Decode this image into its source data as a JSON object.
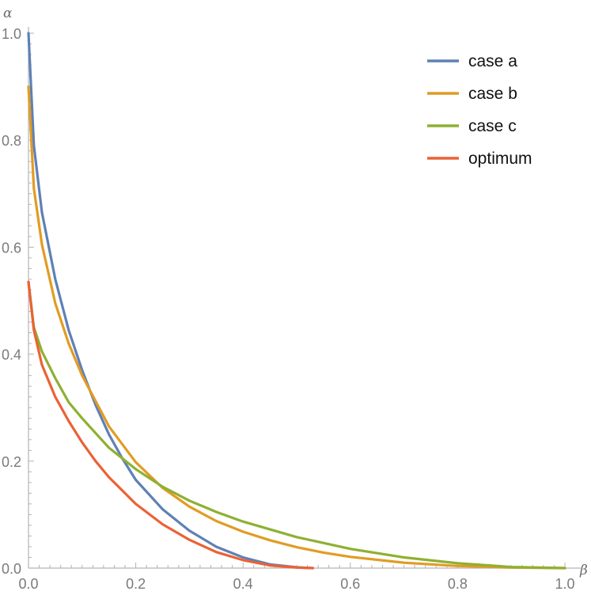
{
  "chart_data": {
    "type": "line",
    "xlabel": "β",
    "ylabel": "α",
    "xlim": [
      0,
      1
    ],
    "ylim": [
      0,
      1
    ],
    "x_ticks": [
      "0.0",
      "0.2",
      "0.4",
      "0.6",
      "0.8",
      "1.0"
    ],
    "y_ticks": [
      "0.0",
      "0.2",
      "0.4",
      "0.6",
      "0.8",
      "1.0"
    ],
    "x_tick_values": [
      0,
      0.2,
      0.4,
      0.6,
      0.8,
      1.0
    ],
    "y_tick_values": [
      0,
      0.2,
      0.4,
      0.6,
      0.8,
      1.0
    ],
    "grid": false,
    "legend_position": "top-right",
    "series": [
      {
        "name": "case a",
        "color": "#5e81b5",
        "x": [
          0,
          0.01,
          0.025,
          0.05,
          0.075,
          0.1,
          0.125,
          0.15,
          0.175,
          0.2,
          0.25,
          0.3,
          0.35,
          0.4,
          0.45,
          0.5,
          0.53
        ],
        "y": [
          1.0,
          0.79,
          0.665,
          0.54,
          0.445,
          0.37,
          0.305,
          0.25,
          0.205,
          0.165,
          0.11,
          0.07,
          0.04,
          0.02,
          0.007,
          0.0015,
          0.0
        ]
      },
      {
        "name": "case b",
        "color": "#e19c24",
        "x": [
          0,
          0.01,
          0.025,
          0.05,
          0.075,
          0.1,
          0.15,
          0.2,
          0.25,
          0.3,
          0.35,
          0.4,
          0.45,
          0.5,
          0.55,
          0.6,
          0.7,
          0.8,
          0.9,
          1.0
        ],
        "y": [
          0.9,
          0.71,
          0.605,
          0.495,
          0.42,
          0.36,
          0.265,
          0.198,
          0.15,
          0.115,
          0.088,
          0.068,
          0.052,
          0.039,
          0.029,
          0.021,
          0.01,
          0.004,
          0.001,
          0.0
        ]
      },
      {
        "name": "case c",
        "color": "#8fb032",
        "x": [
          0,
          0.01,
          0.025,
          0.05,
          0.075,
          0.1,
          0.15,
          0.2,
          0.25,
          0.3,
          0.35,
          0.4,
          0.5,
          0.6,
          0.7,
          0.8,
          0.9,
          1.0
        ],
        "y": [
          0.535,
          0.45,
          0.405,
          0.355,
          0.31,
          0.28,
          0.225,
          0.185,
          0.152,
          0.126,
          0.105,
          0.087,
          0.058,
          0.036,
          0.02,
          0.009,
          0.002,
          0.0
        ]
      },
      {
        "name": "optimum",
        "color": "#eb6235",
        "x": [
          0,
          0.01,
          0.025,
          0.05,
          0.075,
          0.1,
          0.125,
          0.15,
          0.2,
          0.25,
          0.3,
          0.35,
          0.4,
          0.45,
          0.5,
          0.53
        ],
        "y": [
          0.535,
          0.445,
          0.38,
          0.32,
          0.275,
          0.235,
          0.2,
          0.17,
          0.12,
          0.082,
          0.053,
          0.03,
          0.015,
          0.005,
          0.001,
          0.0
        ]
      }
    ]
  }
}
